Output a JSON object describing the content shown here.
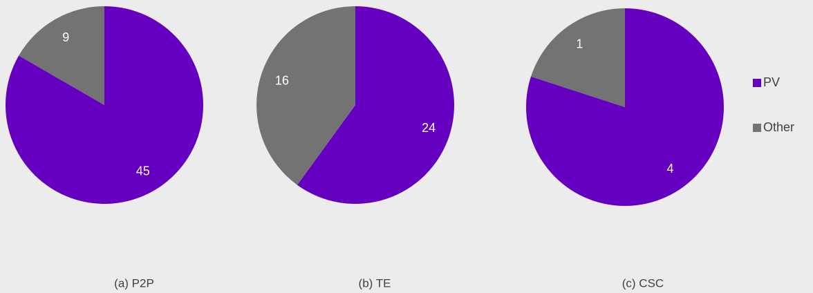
{
  "chart_data": [
    {
      "type": "pie",
      "title": "(a)   P2P",
      "categories": [
        "PV",
        "Other"
      ],
      "values": [
        45,
        9
      ],
      "colors": [
        "#6600c0",
        "#737373"
      ]
    },
    {
      "type": "pie",
      "title": "(b)   TE",
      "categories": [
        "PV",
        "Other"
      ],
      "values": [
        24,
        16
      ],
      "colors": [
        "#6600c0",
        "#737373"
      ]
    },
    {
      "type": "pie",
      "title": "(c) CSC",
      "categories": [
        "PV",
        "Other"
      ],
      "values": [
        4,
        1
      ],
      "colors": [
        "#6600c0",
        "#737373"
      ]
    }
  ]
}
